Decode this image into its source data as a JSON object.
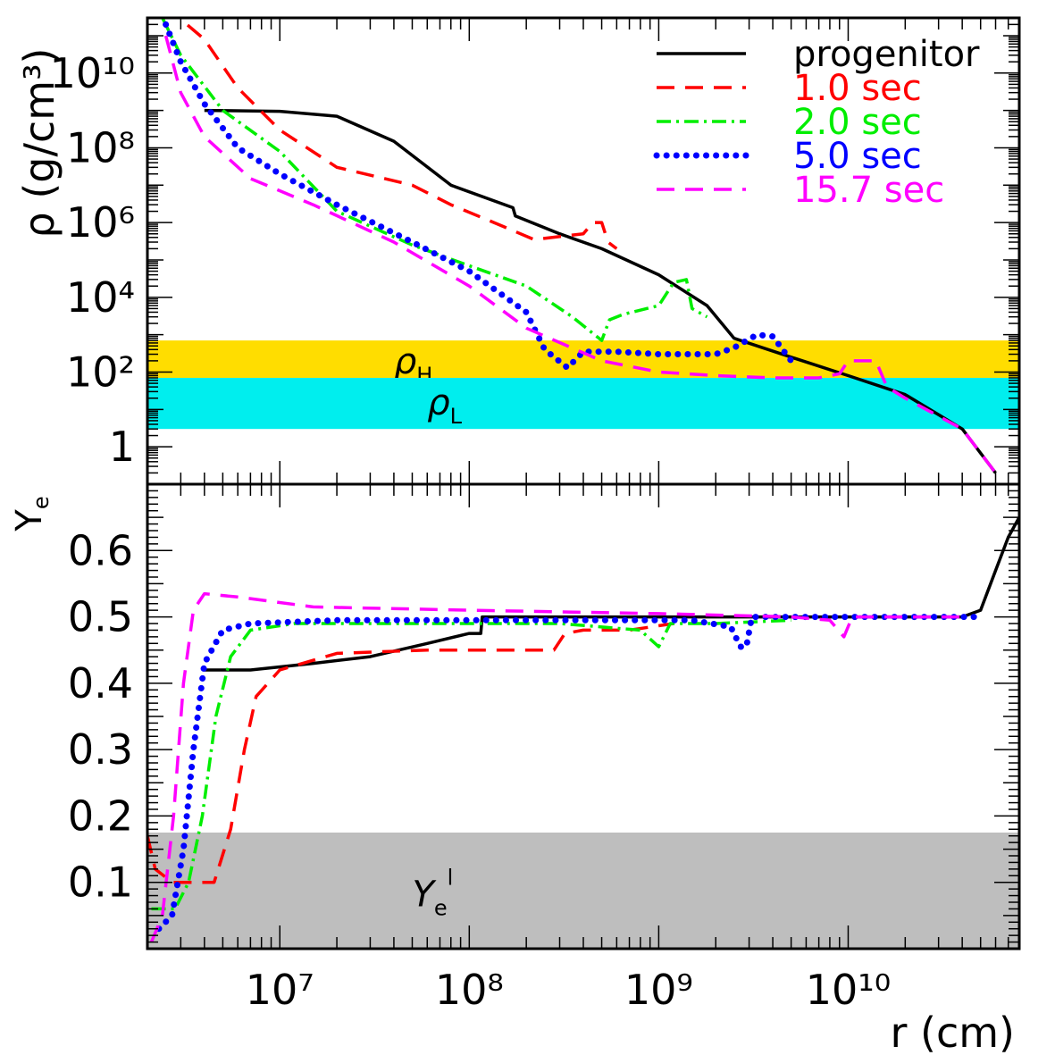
{
  "chart_data": [
    {
      "type": "line",
      "panel": "top",
      "ylabel": "ρ (g/cm³)",
      "yscale": "log",
      "xscale": "log",
      "xlim": [
        2000000,
        80000000000
      ],
      "ylim": [
        0.1,
        300000000000
      ],
      "ytick_labels": [
        "1",
        "10²",
        "10⁴",
        "10⁶",
        "10⁸",
        "10¹⁰"
      ],
      "yticks": [
        1,
        100,
        10000,
        1000000,
        100000000,
        10000000000
      ],
      "bands": [
        {
          "name": "ρH",
          "label_main": "ρ",
          "label_sub": "H",
          "range": [
            60,
            700
          ],
          "color": "#ffdd00",
          "label_x": 40000000,
          "label_y": 180
        },
        {
          "name": "ρL",
          "label_main": "ρ",
          "label_sub": "L",
          "range": [
            3,
            70
          ],
          "color": "#00eeee",
          "label_x": 60000000,
          "label_y": 14
        }
      ],
      "legend": {
        "placement": "top-right",
        "entries": [
          {
            "label": "progenitor",
            "color": "#000000",
            "style": "solid"
          },
          {
            "label": "1.0 sec",
            "color": "#ff0000",
            "style": "dashed"
          },
          {
            "label": "2.0 sec",
            "color": "#00ee00",
            "style": "dashdot"
          },
          {
            "label": "5.0 sec",
            "color": "#0000ff",
            "style": "dotted"
          },
          {
            "label": "15.7 sec",
            "color": "#ff00ff",
            "style": "dashed"
          }
        ]
      },
      "series": [
        {
          "name": "progenitor",
          "color": "#000000",
          "style": "solid",
          "points": [
            [
              4000000,
              1000000000
            ],
            [
              10000000,
              950000000
            ],
            [
              20000000,
              700000000
            ],
            [
              40000000,
              150000000
            ],
            [
              80000000,
              10000000
            ],
            [
              170000000,
              2500000
            ],
            [
              175000000,
              1500000
            ],
            [
              300000000,
              500000
            ],
            [
              500000000,
              200000
            ],
            [
              1000000000,
              40000
            ],
            [
              1800000000,
              6000
            ],
            [
              2500000000,
              800
            ],
            [
              5000000000,
              250
            ],
            [
              10000000000,
              80
            ],
            [
              20000000000,
              25
            ],
            [
              40000000000,
              3
            ],
            [
              60000000000,
              0.2
            ]
          ]
        },
        {
          "name": "1.0 sec",
          "color": "#ff0000",
          "style": "dashed",
          "points": [
            [
              2500000,
              600000000000
            ],
            [
              4000000,
              80000000000
            ],
            [
              6000000,
              4000000000
            ],
            [
              10000000,
              300000000
            ],
            [
              20000000,
              30000000
            ],
            [
              50000000,
              10000000
            ],
            [
              80000000,
              3000000
            ],
            [
              150000000,
              800000
            ],
            [
              220000000,
              350000
            ],
            [
              400000000,
              500000
            ],
            [
              450000000,
              1000000
            ],
            [
              500000000,
              1000000
            ],
            [
              540000000,
              300000
            ],
            [
              600000000,
              200000
            ]
          ]
        },
        {
          "name": "2.0 sec",
          "color": "#00ee00",
          "style": "dashdot",
          "points": [
            [
              2400000,
              300000000000
            ],
            [
              3000000,
              30000000000
            ],
            [
              5000000,
              1000000000
            ],
            [
              10000000,
              80000000
            ],
            [
              20000000,
              2000000
            ],
            [
              50000000,
              250000
            ],
            [
              100000000,
              70000
            ],
            [
              200000000,
              20000
            ],
            [
              350000000,
              3000
            ],
            [
              500000000,
              700
            ],
            [
              550000000,
              2500
            ],
            [
              650000000,
              3500
            ],
            [
              1000000000,
              6000
            ],
            [
              1200000000,
              25000
            ],
            [
              1400000000,
              30000
            ],
            [
              1500000000,
              5000
            ],
            [
              1800000000,
              3000
            ]
          ]
        },
        {
          "name": "5.0 sec",
          "color": "#0000ff",
          "style": "dotted",
          "points": [
            [
              2500000,
              200000000000
            ],
            [
              3000000,
              20000000000
            ],
            [
              4000000,
              1500000000
            ],
            [
              6000000,
              100000000
            ],
            [
              10000000,
              20000000
            ],
            [
              20000000,
              3000000
            ],
            [
              50000000,
              300000
            ],
            [
              100000000,
              50000
            ],
            [
              200000000,
              4000
            ],
            [
              250000000,
              400
            ],
            [
              330000000,
              130
            ],
            [
              400000000,
              350
            ],
            [
              600000000,
              350
            ],
            [
              1000000000,
              300
            ],
            [
              2000000000,
              300
            ],
            [
              2500000000,
              450
            ],
            [
              3300000000,
              1000
            ],
            [
              4000000000,
              900
            ],
            [
              5000000000,
              200
            ]
          ]
        },
        {
          "name": "15.7 sec",
          "color": "#ff00ff",
          "style": "dashed",
          "points": [
            [
              2500000,
              100000000000
            ],
            [
              3000000,
              3000000000
            ],
            [
              4000000,
              200000000
            ],
            [
              7000000,
              15000000
            ],
            [
              15000000,
              3000000
            ],
            [
              40000000,
              300000
            ],
            [
              100000000,
              20000
            ],
            [
              200000000,
              1500
            ],
            [
              500000000,
              200
            ],
            [
              1000000000,
              100
            ],
            [
              2000000000,
              80
            ],
            [
              4000000000,
              70
            ],
            [
              7000000000,
              70
            ],
            [
              9000000000,
              90
            ],
            [
              10000000000,
              200
            ],
            [
              11000000000,
              200
            ],
            [
              14000000000,
              200
            ],
            [
              16000000000,
              40
            ],
            [
              20000000000,
              20
            ],
            [
              40000000000,
              3
            ],
            [
              60000000000,
              0.2
            ]
          ]
        }
      ]
    },
    {
      "type": "line",
      "panel": "bottom",
      "xlabel": "r (cm)",
      "ylabel_main": "Y",
      "ylabel_sub": "e",
      "xscale": "log",
      "xlim": [
        2000000,
        80000000000
      ],
      "ylim": [
        0,
        0.7
      ],
      "ytick_labels": [
        "0.1",
        "0.2",
        "0.3",
        "0.4",
        "0.5",
        "0.6"
      ],
      "yticks": [
        0.1,
        0.2,
        0.3,
        0.4,
        0.5,
        0.6
      ],
      "xtick_labels": [
        "10⁷",
        "10⁸",
        "10⁹",
        "10¹⁰"
      ],
      "xticks": [
        10000000,
        100000000,
        1000000000,
        10000000000
      ],
      "bands": [
        {
          "name": "Yeˡ",
          "label_main": "Y",
          "label_sub": "e",
          "label_sup": "l",
          "range": [
            0,
            0.175
          ],
          "color": "#bebebe",
          "label_x": 50000000,
          "label_y": 0.08
        }
      ],
      "series": [
        {
          "name": "progenitor",
          "color": "#000000",
          "style": "solid",
          "points": [
            [
              4000000,
              0.42
            ],
            [
              7000000,
              0.42
            ],
            [
              15000000,
              0.43
            ],
            [
              30000000,
              0.44
            ],
            [
              60000000,
              0.46
            ],
            [
              100000000,
              0.475
            ],
            [
              115000000,
              0.475
            ],
            [
              117000000,
              0.5
            ],
            [
              200000000,
              0.5
            ],
            [
              2000000000,
              0.5
            ],
            [
              10000000000,
              0.5
            ],
            [
              40000000000,
              0.5
            ],
            [
              50000000000,
              0.51
            ],
            [
              60000000000,
              0.57
            ],
            [
              70000000000,
              0.62
            ],
            [
              80000000000,
              0.65
            ]
          ]
        },
        {
          "name": "1.0 sec",
          "color": "#ff0000",
          "style": "dashed",
          "points": [
            [
              2000000,
              0.17
            ],
            [
              2200000,
              0.12
            ],
            [
              2700000,
              0.1
            ],
            [
              3500000,
              0.1
            ],
            [
              4500000,
              0.1
            ],
            [
              5500000,
              0.18
            ],
            [
              6500000,
              0.3
            ],
            [
              7500000,
              0.38
            ],
            [
              10000000,
              0.42
            ],
            [
              20000000,
              0.445
            ],
            [
              60000000,
              0.45
            ],
            [
              100000000,
              0.45
            ],
            [
              200000000,
              0.45
            ],
            [
              280000000,
              0.45
            ],
            [
              320000000,
              0.475
            ],
            [
              400000000,
              0.48
            ],
            [
              700000000,
              0.48
            ],
            [
              1200000000,
              0.49
            ]
          ]
        },
        {
          "name": "2.0 sec",
          "color": "#00ee00",
          "style": "dashdot",
          "points": [
            [
              2100000,
              0.06
            ],
            [
              2800000,
              0.06
            ],
            [
              3300000,
              0.1
            ],
            [
              3900000,
              0.2
            ],
            [
              4600000,
              0.35
            ],
            [
              5500000,
              0.44
            ],
            [
              7000000,
              0.48
            ],
            [
              12000000,
              0.49
            ],
            [
              60000000,
              0.49
            ],
            [
              300000000,
              0.49
            ],
            [
              800000000,
              0.48
            ],
            [
              1000000000,
              0.455
            ],
            [
              1150000000,
              0.49
            ],
            [
              2000000000,
              0.49
            ],
            [
              5000000000,
              0.495
            ]
          ]
        },
        {
          "name": "5.0 sec",
          "color": "#0000ff",
          "style": "dotted",
          "points": [
            [
              2300000,
              0.03
            ],
            [
              2700000,
              0.05
            ],
            [
              3100000,
              0.15
            ],
            [
              3500000,
              0.3
            ],
            [
              4000000,
              0.43
            ],
            [
              5000000,
              0.48
            ],
            [
              7000000,
              0.49
            ],
            [
              20000000,
              0.495
            ],
            [
              100000000,
              0.495
            ],
            [
              1500000000,
              0.495
            ],
            [
              2400000000,
              0.485
            ],
            [
              2700000000,
              0.455
            ],
            [
              2900000000,
              0.455
            ],
            [
              3100000000,
              0.5
            ],
            [
              10000000000,
              0.5
            ],
            [
              50000000000,
              0.5
            ]
          ]
        },
        {
          "name": "15.7 sec",
          "color": "#ff00ff",
          "style": "dashed",
          "points": [
            [
              2100000,
              0.01
            ],
            [
              2400000,
              0.05
            ],
            [
              2750000,
              0.2
            ],
            [
              3100000,
              0.4
            ],
            [
              3500000,
              0.51
            ],
            [
              4000000,
              0.535
            ],
            [
              6000000,
              0.53
            ],
            [
              15000000,
              0.515
            ],
            [
              100000000,
              0.51
            ],
            [
              1000000000,
              0.505
            ],
            [
              5000000000,
              0.5
            ],
            [
              8000000000,
              0.495
            ],
            [
              9500000000,
              0.47
            ],
            [
              10500000000,
              0.5
            ],
            [
              40000000000,
              0.5
            ]
          ]
        }
      ]
    }
  ]
}
